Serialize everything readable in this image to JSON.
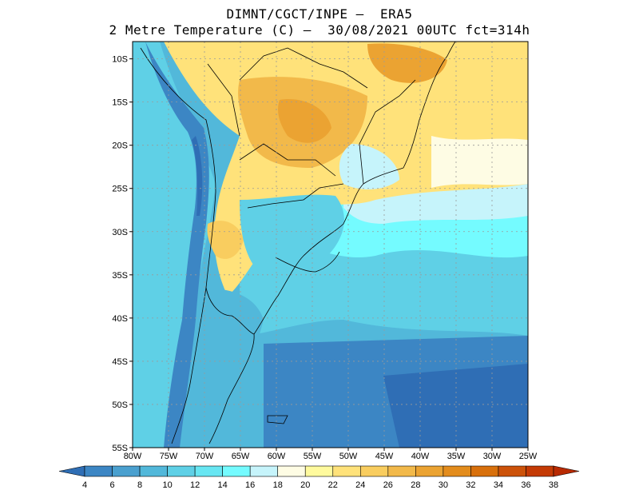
{
  "title": {
    "line1": "DIMNT/CGCT/INPE –  ERA5",
    "line2": "2 Metre Temperature (C) –  30/08/2021 00UTC fct=314h"
  },
  "map": {
    "lat_labels": [
      "10S",
      "15S",
      "20S",
      "25S",
      "30S",
      "35S",
      "40S",
      "45S",
      "50S",
      "55S"
    ],
    "lon_labels": [
      "80W",
      "75W",
      "70W",
      "65W",
      "60W",
      "55W",
      "50W",
      "45W",
      "40W",
      "35W",
      "30W",
      "25W"
    ],
    "lon_range": [
      -80,
      -25
    ],
    "lat_range": [
      -55,
      -8
    ]
  },
  "colorbar": {
    "labels": [
      "4",
      "6",
      "8",
      "10",
      "12",
      "14",
      "16",
      "18",
      "20",
      "22",
      "24",
      "26",
      "28",
      "30",
      "32",
      "34",
      "36",
      "38"
    ],
    "colors": [
      "#2f6eb5",
      "#3c86c4",
      "#4aa0cf",
      "#52b8da",
      "#5fd0e6",
      "#67e6f2",
      "#74fbff",
      "#c6f4fb",
      "#fefce4",
      "#fffa9d",
      "#ffe27a",
      "#f9cd5f",
      "#f2b94a",
      "#eba332",
      "#e38c1c",
      "#d8700c",
      "#cc520a",
      "#c43a05",
      "#b82a02"
    ]
  }
}
